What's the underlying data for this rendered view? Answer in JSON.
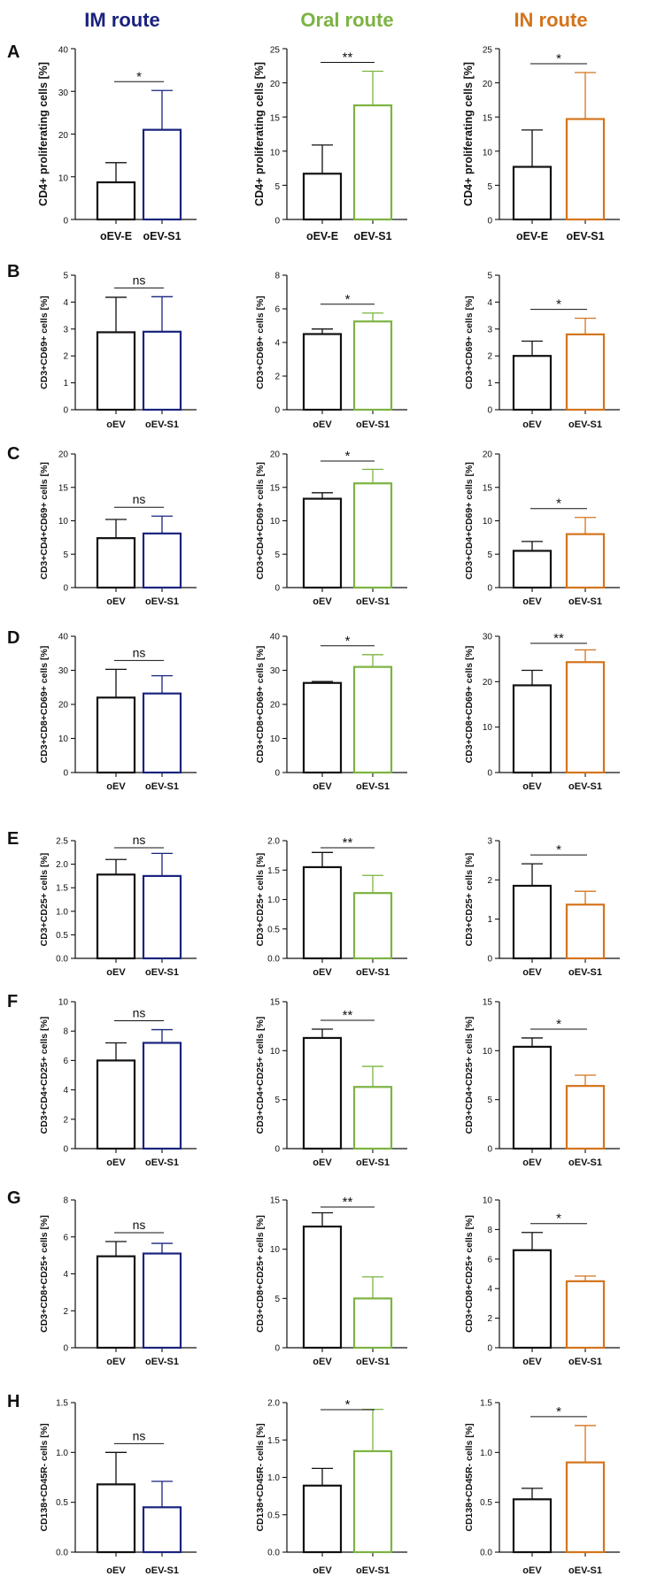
{
  "colors": {
    "IM": "#1a237e",
    "Oral": "#7cb342",
    "IN": "#d4741c",
    "control": "#111111"
  },
  "routes": [
    {
      "key": "IM",
      "label": "IM route"
    },
    {
      "key": "Oral",
      "label": "Oral route"
    },
    {
      "key": "IN",
      "label": "IN route"
    }
  ],
  "rows": [
    {
      "letter": "A",
      "ylabel": "CD4+ proliferating cells [%]",
      "categories": [
        "oEV-E",
        "oEV-S1"
      ]
    },
    {
      "letter": "B",
      "ylabel": "CD3+CD69+ cells [%]",
      "categories": [
        "oEV",
        "oEV-S1"
      ]
    },
    {
      "letter": "C",
      "ylabel": "CD3+CD4+CD69+ cells [%]",
      "categories": [
        "oEV",
        "oEV-S1"
      ]
    },
    {
      "letter": "D",
      "ylabel": "CD3+CD8+CD69+ cells [%]",
      "categories": [
        "oEV",
        "oEV-S1"
      ]
    },
    {
      "letter": "E",
      "ylabel": "CD3+CD25+ cells [%]",
      "categories": [
        "oEV",
        "oEV-S1"
      ]
    },
    {
      "letter": "F",
      "ylabel": "CD3+CD4+CD25+ cells [%]",
      "categories": [
        "oEV",
        "oEV-S1"
      ]
    },
    {
      "letter": "G",
      "ylabel": "CD3+CD8+CD25+ cells [%]",
      "categories": [
        "oEV",
        "oEV-S1"
      ]
    },
    {
      "letter": "H",
      "ylabel": "CD138+CD45R- cells [%]",
      "categories": [
        "oEV",
        "oEV-S1"
      ]
    }
  ],
  "chart_data": [
    {
      "type": "bar",
      "panel": "A",
      "route": "IM",
      "ylabel": "CD4+ proliferating cells [%]",
      "categories": [
        "oEV-E",
        "oEV-S1"
      ],
      "values": [
        8.7,
        21
      ],
      "errors": [
        4.6,
        9.2
      ],
      "ylim": [
        0,
        40
      ],
      "ticks": [
        0,
        10,
        20,
        30,
        40
      ],
      "significance": "*"
    },
    {
      "type": "bar",
      "panel": "A",
      "route": "Oral",
      "ylabel": "CD4+ proliferating cells [%]",
      "categories": [
        "oEV-E",
        "oEV-S1"
      ],
      "values": [
        6.7,
        16.7
      ],
      "errors": [
        4.2,
        5.0
      ],
      "ylim": [
        0,
        25
      ],
      "ticks": [
        0,
        5,
        10,
        15,
        20,
        25
      ],
      "significance": "**"
    },
    {
      "type": "bar",
      "panel": "A",
      "route": "IN",
      "ylabel": "CD4+ proliferating cells [%]",
      "categories": [
        "oEV-E",
        "oEV-S1"
      ],
      "values": [
        7.7,
        14.7
      ],
      "errors": [
        5.4,
        6.8
      ],
      "ylim": [
        0,
        25
      ],
      "ticks": [
        0,
        5,
        10,
        15,
        20,
        25
      ],
      "significance": "*"
    },
    {
      "type": "bar",
      "panel": "B",
      "route": "IM",
      "ylabel": "CD3+CD69+ cells [%]",
      "categories": [
        "oEV",
        "oEV-S1"
      ],
      "values": [
        2.88,
        2.9
      ],
      "errors": [
        1.3,
        1.3
      ],
      "ylim": [
        0,
        5
      ],
      "ticks": [
        0,
        1,
        2,
        3,
        4,
        5
      ],
      "significance": "ns"
    },
    {
      "type": "bar",
      "panel": "B",
      "route": "Oral",
      "ylabel": "CD3+CD69+ cells [%]",
      "categories": [
        "oEV",
        "oEV-S1"
      ],
      "values": [
        4.5,
        5.25
      ],
      "errors": [
        0.3,
        0.5
      ],
      "ylim": [
        0,
        8
      ],
      "ticks": [
        0,
        2,
        4,
        6,
        8
      ],
      "significance": "*"
    },
    {
      "type": "bar",
      "panel": "B",
      "route": "IN",
      "ylabel": "CD3+CD69+ cells [%]",
      "categories": [
        "oEV",
        "oEV-S1"
      ],
      "values": [
        2.0,
        2.8
      ],
      "errors": [
        0.55,
        0.6
      ],
      "ylim": [
        0,
        5
      ],
      "ticks": [
        0,
        1,
        2,
        3,
        4,
        5
      ],
      "significance": "*"
    },
    {
      "type": "bar",
      "panel": "C",
      "route": "IM",
      "ylabel": "CD3+CD4+CD69+ cells [%]",
      "categories": [
        "oEV",
        "oEV-S1"
      ],
      "values": [
        7.4,
        8.1
      ],
      "errors": [
        2.8,
        2.6
      ],
      "ylim": [
        0,
        20
      ],
      "ticks": [
        0,
        5,
        10,
        15,
        20
      ],
      "significance": "ns"
    },
    {
      "type": "bar",
      "panel": "C",
      "route": "Oral",
      "ylabel": "CD3+CD4+CD69+ cells [%]",
      "categories": [
        "oEV",
        "oEV-S1"
      ],
      "values": [
        13.3,
        15.6
      ],
      "errors": [
        0.9,
        2.1
      ],
      "ylim": [
        0,
        20
      ],
      "ticks": [
        0,
        5,
        10,
        15,
        20
      ],
      "significance": "*"
    },
    {
      "type": "bar",
      "panel": "C",
      "route": "IN",
      "ylabel": "CD3+CD4+CD69+ cells [%]",
      "categories": [
        "oEV",
        "oEV-S1"
      ],
      "values": [
        5.5,
        8.0
      ],
      "errors": [
        1.4,
        2.5
      ],
      "ylim": [
        0,
        20
      ],
      "ticks": [
        0,
        5,
        10,
        15,
        20
      ],
      "significance": "*"
    },
    {
      "type": "bar",
      "panel": "D",
      "route": "IM",
      "ylabel": "CD3+CD8+CD69+ cells [%]",
      "categories": [
        "oEV",
        "oEV-S1"
      ],
      "values": [
        22,
        23.2
      ],
      "errors": [
        8.3,
        5.2
      ],
      "ylim": [
        0,
        40
      ],
      "ticks": [
        0,
        10,
        20,
        30,
        40
      ],
      "significance": "ns"
    },
    {
      "type": "bar",
      "panel": "D",
      "route": "Oral",
      "ylabel": "CD3+CD8+CD69+ cells [%]",
      "categories": [
        "oEV",
        "oEV-S1"
      ],
      "values": [
        26.3,
        31.0
      ],
      "errors": [
        0.4,
        3.6
      ],
      "ylim": [
        0,
        40
      ],
      "ticks": [
        0,
        10,
        20,
        30,
        40
      ],
      "significance": "*"
    },
    {
      "type": "bar",
      "panel": "D",
      "route": "IN",
      "ylabel": "CD3+CD8+CD69+ cells [%]",
      "categories": [
        "oEV",
        "oEV-S1"
      ],
      "values": [
        19.2,
        24.3
      ],
      "errors": [
        3.3,
        2.7
      ],
      "ylim": [
        0,
        30
      ],
      "ticks": [
        0,
        10,
        20,
        30
      ],
      "significance": "**"
    },
    {
      "type": "bar",
      "panel": "E",
      "route": "IM",
      "ylabel": "CD3+CD25+ cells [%]",
      "categories": [
        "oEV",
        "oEV-S1"
      ],
      "values": [
        1.78,
        1.75
      ],
      "errors": [
        0.32,
        0.48
      ],
      "ylim": [
        0,
        2.5
      ],
      "ticks": [
        0,
        0.5,
        1.0,
        1.5,
        2.0,
        2.5
      ],
      "significance": "ns"
    },
    {
      "type": "bar",
      "panel": "E",
      "route": "Oral",
      "ylabel": "CD3+CD25+ cells [%]",
      "categories": [
        "oEV",
        "oEV-S1"
      ],
      "values": [
        1.55,
        1.11
      ],
      "errors": [
        0.25,
        0.3
      ],
      "ylim": [
        0,
        2.0
      ],
      "ticks": [
        0,
        0.5,
        1.0,
        1.5,
        2.0
      ],
      "significance": "**"
    },
    {
      "type": "bar",
      "panel": "E",
      "route": "IN",
      "ylabel": "CD3+CD25+ cells [%]",
      "categories": [
        "oEV",
        "oEV-S1"
      ],
      "values": [
        1.85,
        1.37
      ],
      "errors": [
        0.56,
        0.34
      ],
      "ylim": [
        0,
        3
      ],
      "ticks": [
        0,
        1,
        2,
        3
      ],
      "significance": "*"
    },
    {
      "type": "bar",
      "panel": "F",
      "route": "IM",
      "ylabel": "CD3+CD4+CD25+ cells [%]",
      "categories": [
        "oEV",
        "oEV-S1"
      ],
      "values": [
        6.0,
        7.2
      ],
      "errors": [
        1.2,
        0.9
      ],
      "ylim": [
        0,
        10
      ],
      "ticks": [
        0,
        2,
        4,
        6,
        8,
        10
      ],
      "significance": "ns"
    },
    {
      "type": "bar",
      "panel": "F",
      "route": "Oral",
      "ylabel": "CD3+CD4+CD25+ cells [%]",
      "categories": [
        "oEV",
        "oEV-S1"
      ],
      "values": [
        11.3,
        6.3
      ],
      "errors": [
        0.9,
        2.1
      ],
      "ylim": [
        0,
        15
      ],
      "ticks": [
        0,
        5,
        10,
        15
      ],
      "significance": "**"
    },
    {
      "type": "bar",
      "panel": "F",
      "route": "IN",
      "ylabel": "CD3+CD4+CD25+ cells [%]",
      "categories": [
        "oEV",
        "oEV-S1"
      ],
      "values": [
        10.4,
        6.4
      ],
      "errors": [
        0.9,
        1.1
      ],
      "ylim": [
        0,
        15
      ],
      "ticks": [
        0,
        5,
        10,
        15
      ],
      "significance": "*"
    },
    {
      "type": "bar",
      "panel": "G",
      "route": "IM",
      "ylabel": "CD3+CD8+CD25+ cells [%]",
      "categories": [
        "oEV",
        "oEV-S1"
      ],
      "values": [
        4.95,
        5.1
      ],
      "errors": [
        0.8,
        0.55
      ],
      "ylim": [
        0,
        8
      ],
      "ticks": [
        0,
        2,
        4,
        6,
        8
      ],
      "significance": "ns"
    },
    {
      "type": "bar",
      "panel": "G",
      "route": "Oral",
      "ylabel": "CD3+CD8+CD25+ cells [%]",
      "categories": [
        "oEV",
        "oEV-S1"
      ],
      "values": [
        12.3,
        5.0
      ],
      "errors": [
        1.4,
        2.2
      ],
      "ylim": [
        0,
        15
      ],
      "ticks": [
        0,
        5,
        10,
        15
      ],
      "significance": "**"
    },
    {
      "type": "bar",
      "panel": "G",
      "route": "IN",
      "ylabel": "CD3+CD8+CD25+ cells [%]",
      "categories": [
        "oEV",
        "oEV-S1"
      ],
      "values": [
        6.6,
        4.5
      ],
      "errors": [
        1.2,
        0.35
      ],
      "ylim": [
        0,
        10
      ],
      "ticks": [
        0,
        2,
        4,
        6,
        8,
        10
      ],
      "significance": "*"
    },
    {
      "type": "bar",
      "panel": "H",
      "route": "IM",
      "ylabel": "CD138+CD45R- cells [%]",
      "categories": [
        "oEV",
        "oEV-S1"
      ],
      "values": [
        0.68,
        0.45
      ],
      "errors": [
        0.32,
        0.26
      ],
      "ylim": [
        0,
        1.5
      ],
      "ticks": [
        0,
        0.5,
        1.0,
        1.5
      ],
      "significance": "ns"
    },
    {
      "type": "bar",
      "panel": "H",
      "route": "Oral",
      "ylabel": "CD138+CD45R- cells [%]",
      "categories": [
        "oEV",
        "oEV-S1"
      ],
      "values": [
        0.89,
        1.35
      ],
      "errors": [
        0.23,
        0.56
      ],
      "ylim": [
        0,
        2.0
      ],
      "ticks": [
        0,
        0.5,
        1.0,
        1.5,
        2.0
      ],
      "significance": "*"
    },
    {
      "type": "bar",
      "panel": "H",
      "route": "IN",
      "ylabel": "CD138+CD45R- cells [%]",
      "categories": [
        "oEV",
        "oEV-S1"
      ],
      "values": [
        0.53,
        0.9
      ],
      "errors": [
        0.11,
        0.37
      ],
      "ylim": [
        0,
        1.5
      ],
      "ticks": [
        0,
        0.5,
        1.0,
        1.5
      ],
      "significance": "*"
    }
  ]
}
